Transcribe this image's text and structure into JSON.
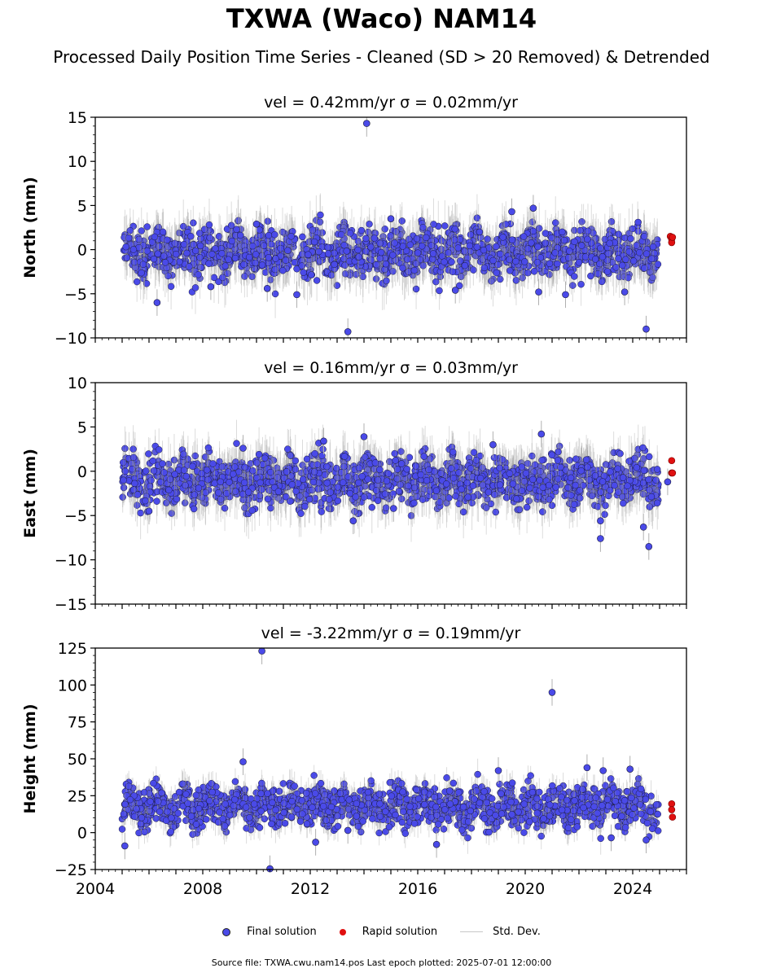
{
  "figure": {
    "title": "TXWA (Waco) NAM14",
    "subtitle": "Processed Daily Position Time Series - Cleaned (SD > 20 Removed) & Detrended",
    "footer": "Source file: TXWA.cwu.nam14.pos  Last epoch plotted: 2025-07-01 12:00:00"
  },
  "legend": {
    "final": "Final solution",
    "rapid": "Rapid solution",
    "std": "Std. Dev."
  },
  "colors": {
    "final": "#4a4ae8",
    "rapid": "#e01010",
    "std": "#c8c8c8"
  },
  "chart_data": [
    {
      "type": "scatter",
      "component": "north",
      "title": "vel = 0.42mm/yr   σ = 0.02mm/yr",
      "ylabel": "North (mm)",
      "xlim": [
        2004.0,
        2026.0
      ],
      "ylim": [
        -10,
        15
      ],
      "yticks": [
        -10,
        -5,
        0,
        5,
        10,
        15
      ],
      "grid": false,
      "series": [
        {
          "name": "Final solution",
          "points": [
            [
              2006.3,
              -6.0
            ],
            [
              2008.3,
              -4.2
            ],
            [
              2010.0,
              2.9
            ],
            [
              2010.4,
              -4.4
            ],
            [
              2011.5,
              -5.1
            ],
            [
              2013.4,
              -9.3
            ],
            [
              2014.1,
              14.3
            ],
            [
              2015.0,
              3.5
            ],
            [
              2017.4,
              -4.6
            ],
            [
              2018.3,
              2.0
            ],
            [
              2019.5,
              4.3
            ],
            [
              2020.3,
              4.7
            ],
            [
              2020.5,
              -4.8
            ],
            [
              2021.5,
              -5.1
            ],
            [
              2023.7,
              -4.8
            ],
            [
              2024.5,
              -9.0
            ],
            [
              2024.2,
              3.1
            ]
          ]
        },
        {
          "name": "Rapid solution",
          "points": [
            [
              2025.4,
              1.5
            ],
            [
              2025.45,
              1.2
            ],
            [
              2025.45,
              0.8
            ],
            [
              2025.48,
              1.4
            ]
          ]
        }
      ]
    },
    {
      "type": "scatter",
      "component": "east",
      "title": "vel = 0.16mm/yr   σ = 0.03mm/yr",
      "ylabel": "East (mm)",
      "xlim": [
        2004.0,
        2026.0
      ],
      "ylim": [
        -15,
        10
      ],
      "yticks": [
        -15,
        -10,
        -5,
        0,
        5,
        10
      ],
      "grid": false,
      "series": [
        {
          "name": "Final solution",
          "points": [
            [
              2006.0,
              -4.5
            ],
            [
              2009.5,
              2.6
            ],
            [
              2012.5,
              3.4
            ],
            [
              2013.6,
              -5.6
            ],
            [
              2014.0,
              3.9
            ],
            [
              2015.1,
              -4.2
            ],
            [
              2018.8,
              3.0
            ],
            [
              2020.6,
              4.2
            ],
            [
              2022.8,
              -7.6
            ],
            [
              2022.8,
              -5.6
            ],
            [
              2024.4,
              -6.3
            ],
            [
              2024.6,
              -8.5
            ],
            [
              2025.3,
              -1.2
            ]
          ]
        },
        {
          "name": "Rapid solution",
          "points": [
            [
              2025.45,
              1.2
            ],
            [
              2025.45,
              -0.2
            ],
            [
              2025.48,
              -0.2
            ]
          ]
        }
      ]
    },
    {
      "type": "scatter",
      "component": "height",
      "title": "vel = -3.22mm/yr   σ = 0.19mm/yr",
      "ylabel": "Height (mm)",
      "xlim": [
        2004.0,
        2026.0
      ],
      "ylim": [
        -25,
        125
      ],
      "yticks": [
        -25,
        0,
        25,
        50,
        75,
        100,
        125
      ],
      "xticks": [
        2004,
        2008,
        2012,
        2016,
        2020,
        2024
      ],
      "grid": false,
      "series": [
        {
          "name": "Final solution",
          "points": [
            [
              2005.1,
              -9.0
            ],
            [
              2009.5,
              48.0
            ],
            [
              2010.2,
              123.0
            ],
            [
              2010.5,
              -24.5
            ],
            [
              2012.2,
              -6.5
            ],
            [
              2013.4,
              1.5
            ],
            [
              2016.7,
              -8.0
            ],
            [
              2019.0,
              42.0
            ],
            [
              2021.0,
              95.0
            ],
            [
              2022.3,
              44.0
            ],
            [
              2022.9,
              42.0
            ],
            [
              2023.2,
              -3.5
            ],
            [
              2023.9,
              43.0
            ],
            [
              2024.5,
              -5.0
            ]
          ]
        },
        {
          "name": "Rapid solution",
          "points": [
            [
              2025.45,
              19.5
            ],
            [
              2025.45,
              15.5
            ],
            [
              2025.48,
              10.5
            ]
          ]
        }
      ]
    }
  ]
}
